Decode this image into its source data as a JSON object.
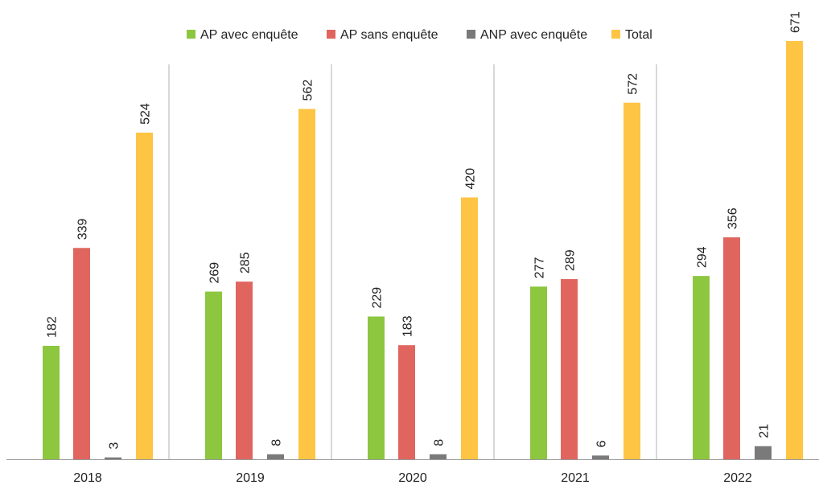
{
  "chart_data": {
    "type": "bar",
    "categories": [
      "2018",
      "2019",
      "2020",
      "2021",
      "2022"
    ],
    "series": [
      {
        "name": "AP avec enquête",
        "color": "#8dc63f",
        "values": [
          182,
          269,
          229,
          277,
          294
        ]
      },
      {
        "name": "AP sans enquête",
        "color": "#e0655f",
        "values": [
          339,
          285,
          183,
          289,
          356
        ]
      },
      {
        "name": "ANP avec enquête",
        "color": "#7a7a7a",
        "values": [
          3,
          8,
          8,
          6,
          21
        ]
      },
      {
        "name": "Total",
        "color": "#fec444",
        "values": [
          524,
          562,
          420,
          572,
          671
        ]
      }
    ],
    "ylim": [
      0,
      680
    ],
    "grid": false,
    "legend_position": "top-center",
    "data_labels": true,
    "data_label_orientation": "vertical"
  }
}
